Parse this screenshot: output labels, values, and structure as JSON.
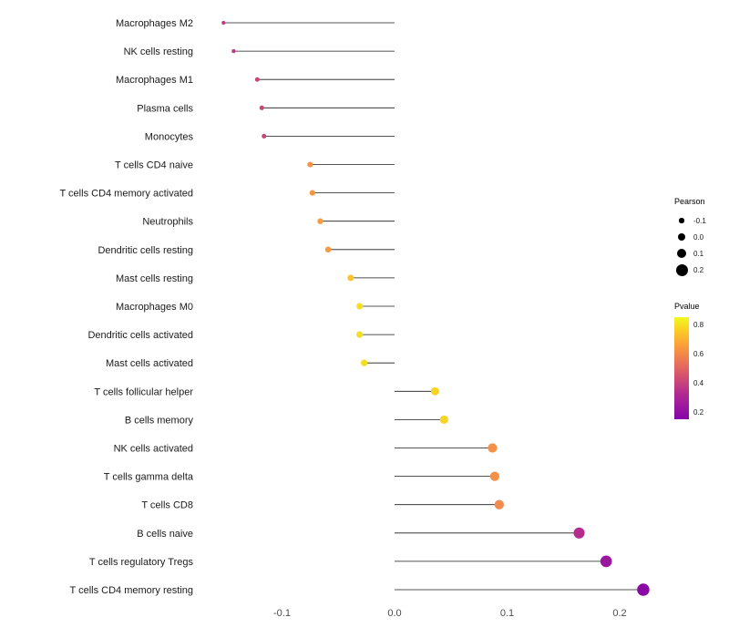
{
  "chart_data": {
    "type": "lollipop",
    "title": "",
    "xlabel": "",
    "ylabel": "",
    "x_range": [
      -0.175,
      0.235
    ],
    "grid": false,
    "x_ticks": [
      {
        "label": "-0.1",
        "value": -0.1
      },
      {
        "label": "0.0",
        "value": 0.0
      },
      {
        "label": "0.1",
        "value": 0.1
      },
      {
        "label": "0.2",
        "value": 0.2
      }
    ],
    "points": [
      {
        "label": "Macrophages M2",
        "pearson": -0.152,
        "pvalue": 0.38,
        "color": "#bf3984"
      },
      {
        "label": "NK cells resting",
        "pearson": -0.143,
        "pvalue": 0.38,
        "color": "#bf3984"
      },
      {
        "label": "Macrophages M1",
        "pearson": -0.122,
        "pvalue": 0.42,
        "color": "#c84677"
      },
      {
        "label": "Plasma cells",
        "pearson": -0.118,
        "pvalue": 0.42,
        "color": "#c84677"
      },
      {
        "label": "Monocytes",
        "pearson": -0.116,
        "pvalue": 0.42,
        "color": "#c84677"
      },
      {
        "label": "T cells CD4 naive",
        "pearson": -0.075,
        "pvalue": 0.65,
        "color": "#f79441"
      },
      {
        "label": "T cells CD4 memory activated",
        "pearson": -0.073,
        "pvalue": 0.65,
        "color": "#f79441"
      },
      {
        "label": "Neutrophils",
        "pearson": -0.066,
        "pvalue": 0.66,
        "color": "#f89a3d"
      },
      {
        "label": "Dendritic cells resting",
        "pearson": -0.059,
        "pvalue": 0.66,
        "color": "#f89a3d"
      },
      {
        "label": "Mast cells resting",
        "pearson": -0.039,
        "pvalue": 0.74,
        "color": "#f9c32c"
      },
      {
        "label": "Macrophages M0",
        "pearson": -0.031,
        "pvalue": 0.78,
        "color": "#f5dd23"
      },
      {
        "label": "Dendritic cells activated",
        "pearson": -0.031,
        "pvalue": 0.78,
        "color": "#f5dd23"
      },
      {
        "label": "Mast cells activated",
        "pearson": -0.027,
        "pvalue": 0.78,
        "color": "#f5dd23"
      },
      {
        "label": "T cells follicular helper",
        "pearson": 0.036,
        "pvalue": 0.76,
        "color": "#f7d325"
      },
      {
        "label": "B cells memory",
        "pearson": 0.044,
        "pvalue": 0.76,
        "color": "#f7d325"
      },
      {
        "label": "NK cells activated",
        "pearson": 0.087,
        "pvalue": 0.6,
        "color": "#f49148"
      },
      {
        "label": "T cells gamma delta",
        "pearson": 0.089,
        "pvalue": 0.6,
        "color": "#f49148"
      },
      {
        "label": "T cells CD8",
        "pearson": 0.093,
        "pvalue": 0.58,
        "color": "#f18c4e"
      },
      {
        "label": "B cells naive",
        "pearson": 0.164,
        "pvalue": 0.3,
        "color": "#b32c8e"
      },
      {
        "label": "T cells regulatory  Tregs",
        "pearson": 0.188,
        "pvalue": 0.24,
        "color": "#9c17a0"
      },
      {
        "label": "T cells CD4 memory resting",
        "pearson": 0.221,
        "pvalue": 0.18,
        "color": "#8a09a5"
      }
    ],
    "legend_size": {
      "title": "Pearson",
      "entries": [
        {
          "label": "-0.1",
          "value": -0.1
        },
        {
          "label": "0.0",
          "value": 0.0
        },
        {
          "label": "0.1",
          "value": 0.1
        },
        {
          "label": "0.2",
          "value": 0.2
        }
      ]
    },
    "legend_color": {
      "title": "Pvalue",
      "tick_labels": [
        "0.8",
        "0.6",
        "0.4",
        "0.2"
      ],
      "tick_values": [
        0.8,
        0.6,
        0.4,
        0.2
      ],
      "range": [
        0.85,
        0.15
      ],
      "gradient_stops": [
        "#f0f921",
        "#fcce25",
        "#fca636",
        "#f2844b",
        "#e16462",
        "#cc4778",
        "#b12a90",
        "#9c179e",
        "#8405a7"
      ]
    }
  }
}
